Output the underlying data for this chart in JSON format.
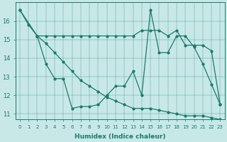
{
  "xlabel": "Humidex (Indice chaleur)",
  "bg_color": "#c8e8e8",
  "line_color": "#1a7a6a",
  "xlim": [
    -0.5,
    23.5
  ],
  "ylim": [
    10.7,
    17.0
  ],
  "yticks": [
    11,
    12,
    13,
    14,
    15,
    16
  ],
  "xticks": [
    0,
    1,
    2,
    3,
    4,
    5,
    6,
    7,
    8,
    9,
    10,
    11,
    12,
    13,
    14,
    15,
    16,
    17,
    18,
    19,
    20,
    21,
    22,
    23
  ],
  "series1_x": [
    0,
    1,
    2,
    3,
    4,
    5,
    6,
    7,
    8,
    9,
    10,
    11,
    12,
    13,
    14,
    15,
    16,
    17,
    18,
    19,
    20,
    21,
    22,
    23
  ],
  "series1_y": [
    16.6,
    15.8,
    15.2,
    15.2,
    15.2,
    15.2,
    15.2,
    15.2,
    15.2,
    15.2,
    15.2,
    15.2,
    15.2,
    15.2,
    15.5,
    15.5,
    15.5,
    15.2,
    15.5,
    14.7,
    14.7,
    14.7,
    14.4,
    11.5
  ],
  "series2_x": [
    0,
    2,
    3,
    4,
    5,
    6,
    7,
    8,
    9,
    10,
    11,
    12,
    13,
    14,
    15,
    16,
    17,
    18,
    19,
    20,
    21,
    22,
    23
  ],
  "series2_y": [
    16.6,
    15.2,
    14.8,
    14.3,
    13.8,
    13.3,
    12.8,
    12.5,
    12.2,
    11.9,
    11.7,
    11.5,
    11.3,
    11.3,
    11.3,
    11.2,
    11.1,
    11.0,
    10.9,
    10.9,
    10.9,
    10.8,
    10.7
  ],
  "series3_x": [
    2,
    3,
    4,
    5,
    6,
    7,
    8,
    9,
    10,
    11,
    12,
    13,
    14,
    15,
    16,
    17,
    18,
    19,
    20,
    21,
    22,
    23
  ],
  "series3_y": [
    15.2,
    13.7,
    12.9,
    12.9,
    11.3,
    11.4,
    11.4,
    11.5,
    12.0,
    12.5,
    12.5,
    13.3,
    12.0,
    16.6,
    14.3,
    14.3,
    15.2,
    15.2,
    14.6,
    13.7,
    12.6,
    11.5
  ]
}
